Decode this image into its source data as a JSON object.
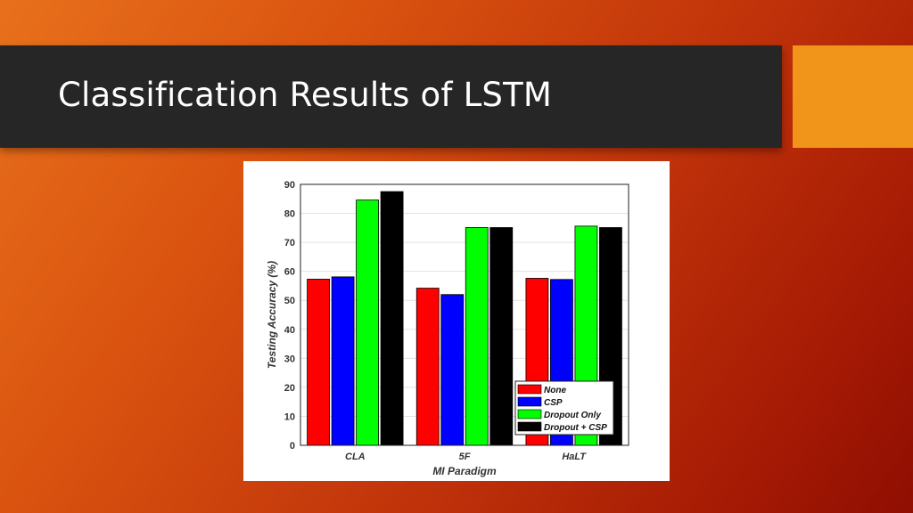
{
  "slide": {
    "title": "Classification Results of LSTM",
    "accent_color": "#f0941a",
    "title_bar_color": "#262626"
  },
  "chart_data": {
    "type": "bar",
    "xlabel": "MI Paradigm",
    "ylabel": "Testing Accuracy (%)",
    "ylim": [
      0,
      90
    ],
    "yticks": [
      0,
      10,
      20,
      30,
      40,
      50,
      60,
      70,
      80,
      90
    ],
    "grid": true,
    "legend_position": "bottom-right",
    "categories": [
      "CLA",
      "5F",
      "HaLT"
    ],
    "series": [
      {
        "name": "None",
        "color": "#ff0000",
        "values": [
          57.3,
          54.2,
          57.6
        ]
      },
      {
        "name": "CSP",
        "color": "#0000ff",
        "values": [
          58.1,
          52.0,
          57.2
        ]
      },
      {
        "name": "Dropout Only",
        "color": "#00ff00",
        "values": [
          84.6,
          75.1,
          75.6
        ]
      },
      {
        "name": "Dropout + CSP",
        "color": "#000000",
        "values": [
          87.5,
          75.1,
          75.1
        ]
      }
    ]
  }
}
